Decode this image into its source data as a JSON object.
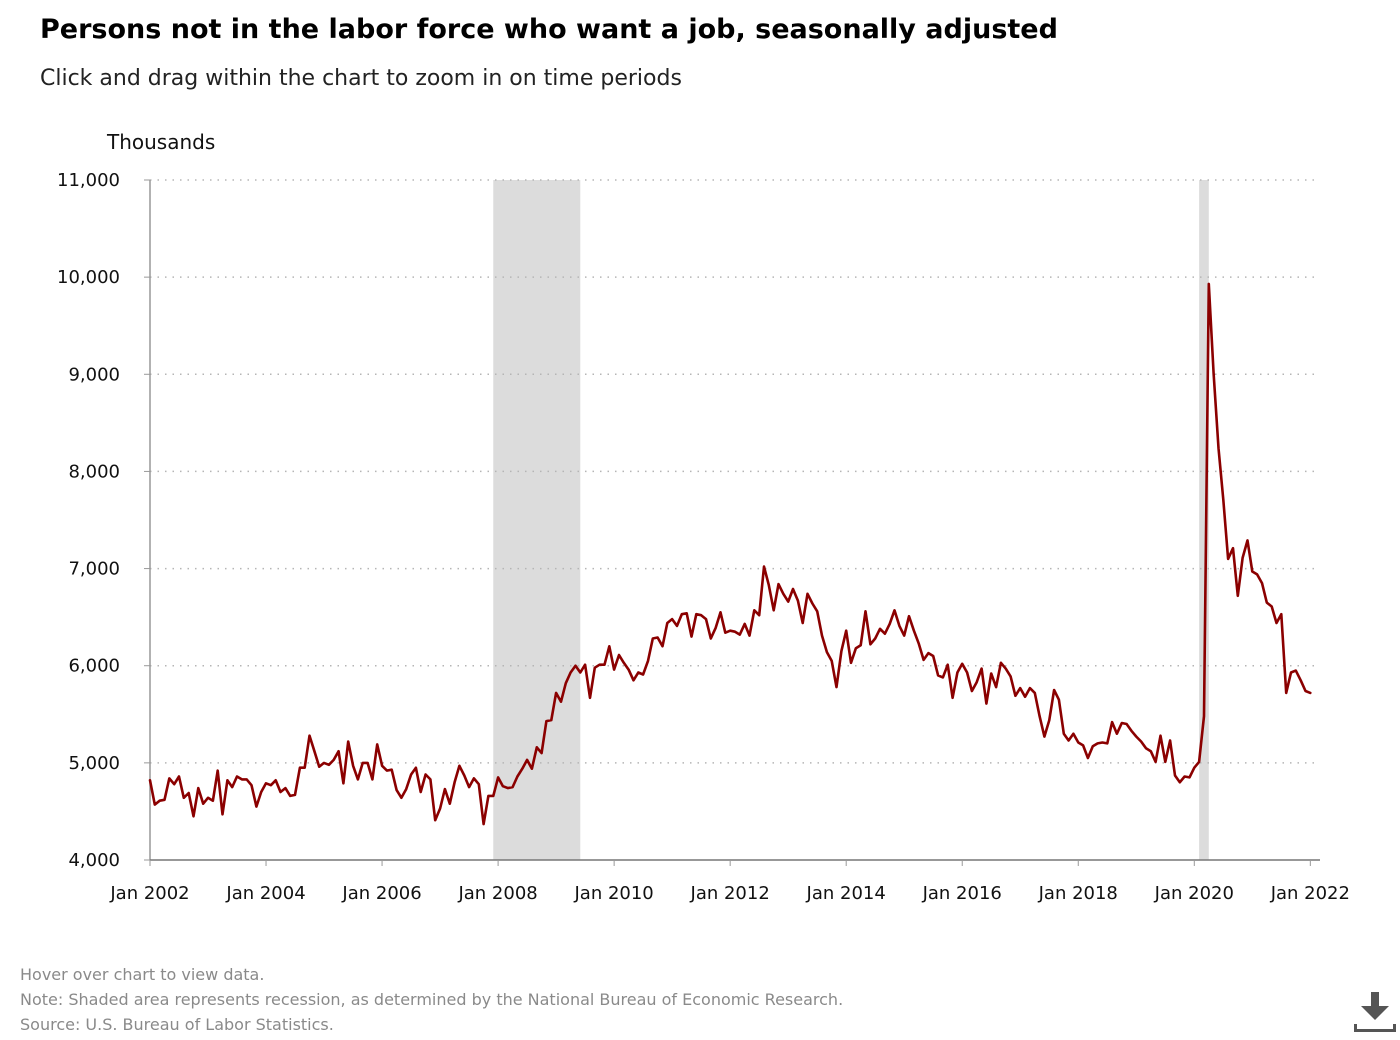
{
  "header": {
    "title": "Persons not in the labor force who want a job, seasonally adjusted",
    "subtitle": "Click and drag within the chart to zoom in on time periods"
  },
  "chart_data": {
    "type": "line",
    "ylabel": "Thousands",
    "ylim": [
      4000,
      11000
    ],
    "yticks": [
      4000,
      5000,
      6000,
      7000,
      8000,
      9000,
      10000,
      11000
    ],
    "ytick_labels": [
      "4,000",
      "5,000",
      "6,000",
      "7,000",
      "8,000",
      "9,000",
      "10,000",
      "11,000"
    ],
    "xlim": [
      "Jan 2002",
      "Mar 2022"
    ],
    "xtick_labels": [
      "Jan 2002",
      "Jan 2004",
      "Jan 2006",
      "Jan 2008",
      "Jan 2010",
      "Jan 2012",
      "Jan 2014",
      "Jan 2016",
      "Jan 2018",
      "Jan 2020",
      "Jan 2022"
    ],
    "grid": "horizontal dotted",
    "line_color": "#8b0000",
    "recession_color": "#dcdcdc",
    "recessions": [
      {
        "start": "Dec 2007",
        "end": "Jun 2009"
      },
      {
        "start": "Feb 2020",
        "end": "Apr 2020"
      }
    ],
    "series": [
      {
        "start": "Jan 2002",
        "frequency": "monthly",
        "values": [
          4820,
          4570,
          4610,
          4620,
          4840,
          4780,
          4860,
          4640,
          4690,
          4450,
          4740,
          4580,
          4640,
          4610,
          4920,
          4470,
          4820,
          4750,
          4860,
          4830,
          4830,
          4770,
          4550,
          4700,
          4790,
          4770,
          4820,
          4700,
          4740,
          4660,
          4670,
          4950,
          4950,
          5280,
          5120,
          4960,
          5000,
          4980,
          5030,
          5120,
          4790,
          5220,
          4970,
          4830,
          5000,
          5000,
          4830,
          5190,
          4970,
          4920,
          4930,
          4720,
          4640,
          4730,
          4880,
          4950,
          4700,
          4880,
          4830,
          4410,
          4530,
          4730,
          4580,
          4800,
          4970,
          4870,
          4750,
          4840,
          4780,
          4370,
          4660,
          4660,
          4850,
          4760,
          4740,
          4750,
          4860,
          4940,
          5030,
          4940,
          5160,
          5100,
          5430,
          5440,
          5720,
          5630,
          5820,
          5930,
          6000,
          5930,
          6010,
          5670,
          5980,
          6010,
          6010,
          6200,
          5960,
          6110,
          6030,
          5960,
          5850,
          5930,
          5910,
          6050,
          6280,
          6290,
          6200,
          6440,
          6480,
          6410,
          6530,
          6540,
          6300,
          6530,
          6520,
          6480,
          6280,
          6390,
          6550,
          6340,
          6360,
          6350,
          6320,
          6430,
          6310,
          6570,
          6520,
          7020,
          6830,
          6570,
          6840,
          6740,
          6660,
          6790,
          6670,
          6440,
          6740,
          6640,
          6560,
          6310,
          6140,
          6050,
          5780,
          6150,
          6360,
          6030,
          6180,
          6210,
          6560,
          6220,
          6280,
          6380,
          6330,
          6430,
          6570,
          6410,
          6310,
          6510,
          6360,
          6230,
          6060,
          6130,
          6100,
          5900,
          5880,
          6010,
          5670,
          5930,
          6020,
          5930,
          5740,
          5830,
          5970,
          5610,
          5920,
          5780,
          6030,
          5970,
          5890,
          5690,
          5770,
          5680,
          5770,
          5720,
          5480,
          5270,
          5440,
          5750,
          5650,
          5300,
          5230,
          5300,
          5210,
          5180,
          5050,
          5170,
          5200,
          5210,
          5200,
          5420,
          5300,
          5410,
          5400,
          5330,
          5270,
          5220,
          5150,
          5120,
          5010,
          5280,
          5010,
          5230,
          4870,
          4800,
          4860,
          4850,
          4950,
          5010,
          5480,
          9930,
          9010,
          8240,
          7710,
          7100,
          7210,
          6720,
          7110,
          7290,
          6970,
          6940,
          6850,
          6650,
          6610,
          6440,
          6530,
          5720,
          5930,
          5950,
          5850,
          5740,
          5720
        ]
      }
    ]
  },
  "footer": {
    "hover_note": "Hover over chart to view data.",
    "recession_note": "Note: Shaded area represents recession, as determined by the National Bureau of Economic Research.",
    "source": "Source: U.S. Bureau of Labor Statistics."
  },
  "download_icon": "download-icon"
}
